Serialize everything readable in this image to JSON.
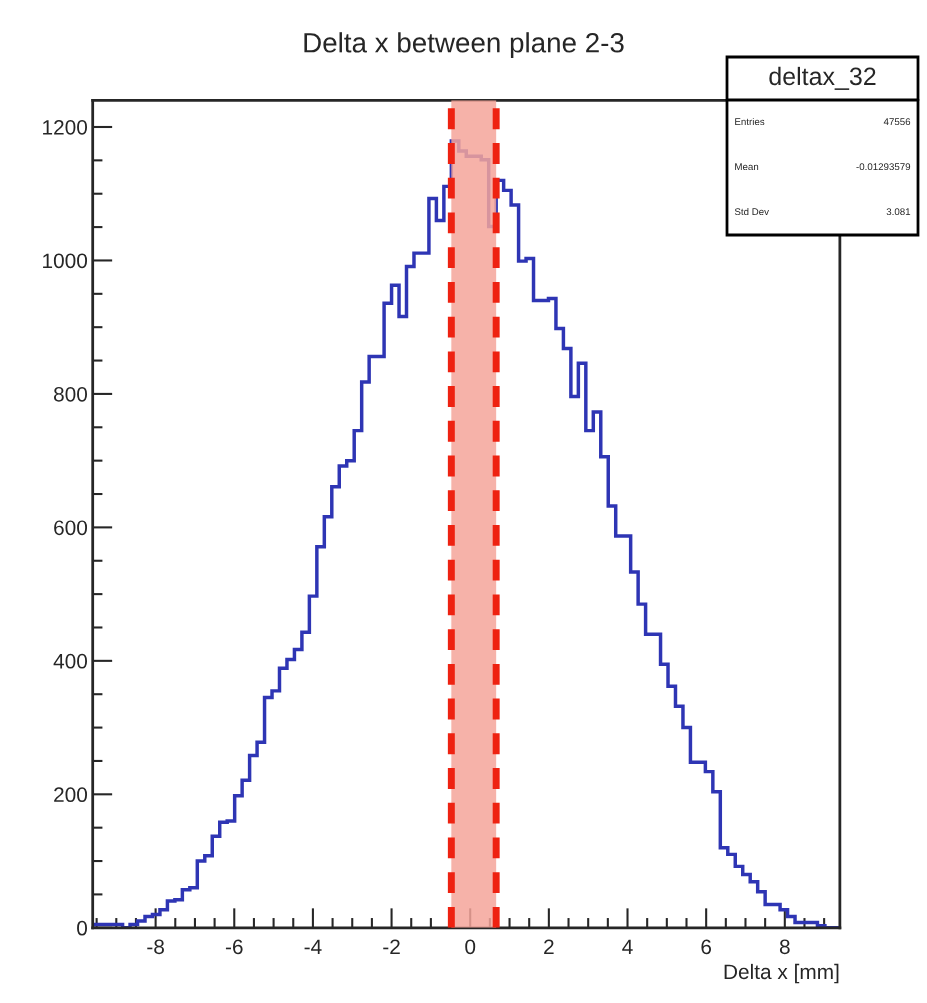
{
  "chart_data": {
    "type": "histogram",
    "title": "Delta x between plane 2-3",
    "xlabel": "Delta x [mm]",
    "xlim": [
      -9.6,
      9.4
    ],
    "xticks": [
      -8,
      -6,
      -4,
      -2,
      0,
      2,
      4,
      6,
      8
    ],
    "ylim": [
      0,
      1240
    ],
    "yticks": [
      0,
      200,
      400,
      600,
      800,
      1000,
      1200
    ],
    "grid": false,
    "legend": false,
    "annotations": [
      "deltax_32",
      "Entries",
      "47556",
      "Mean",
      "-0.01293579",
      "Std Dev",
      "3.081"
    ],
    "ref_lines": [
      {
        "axis": "x",
        "value": -0.48,
        "color": "#ee2211",
        "line_style": "dashed"
      },
      {
        "axis": "x",
        "value": 0.66,
        "color": "#ee2211",
        "line_style": "dashed"
      }
    ],
    "bands": [
      {
        "axis": "x",
        "from": -0.48,
        "to": 0.66,
        "color": "#f4a59a"
      }
    ],
    "color": "#2e35b4",
    "bins": [
      -9.6,
      -9.41,
      -9.22,
      -9.03,
      -8.84,
      -8.65,
      -8.46,
      -8.27,
      -8.08,
      -7.89,
      -7.7,
      -7.51,
      -7.32,
      -7.13,
      -6.94,
      -6.75,
      -6.56,
      -6.37,
      -6.18,
      -5.99,
      -5.8,
      -5.61,
      -5.42,
      -5.23,
      -5.04,
      -4.85,
      -4.66,
      -4.47,
      -4.28,
      -4.09,
      -3.9,
      -3.71,
      -3.52,
      -3.33,
      -3.14,
      -2.95,
      -2.76,
      -2.57,
      -2.38,
      -2.19,
      -2.0,
      -1.81,
      -1.62,
      -1.43,
      -1.24,
      -1.05,
      -0.86,
      -0.67,
      -0.48,
      -0.29,
      -0.1,
      0.09,
      0.28,
      0.47,
      0.66,
      0.85,
      1.04,
      1.23,
      1.42,
      1.61,
      1.8,
      1.99,
      2.18,
      2.37,
      2.56,
      2.75,
      2.94,
      3.13,
      3.32,
      3.51,
      3.7,
      3.89,
      4.08,
      4.27,
      4.46,
      4.65,
      4.84,
      5.03,
      5.22,
      5.41,
      5.6,
      5.79,
      5.98,
      6.17,
      6.36,
      6.55,
      6.74,
      6.93,
      7.12,
      7.31,
      7.5,
      7.69,
      7.88,
      8.07,
      8.26,
      8.45,
      8.64,
      8.83,
      9.02,
      9.21,
      9.4
    ],
    "values": [
      5,
      5,
      5,
      5,
      0,
      5,
      10,
      17,
      20,
      27,
      40,
      42,
      57,
      60,
      100,
      108,
      137,
      158,
      160,
      198,
      221,
      258,
      278,
      345,
      355,
      389,
      402,
      417,
      443,
      497,
      571,
      616,
      661,
      692,
      700,
      745,
      818,
      856,
      856,
      936,
      963,
      916,
      991,
      1011,
      1011,
      1093,
      1060,
      1111,
      1179,
      1164,
      1156,
      1156,
      1151,
      1051,
      1120,
      1105,
      1083,
      999,
      1003,
      940,
      940,
      943,
      898,
      868,
      796,
      846,
      745,
      773,
      706,
      632,
      587,
      587,
      533,
      485,
      440,
      440,
      395,
      362,
      332,
      300,
      248,
      248,
      234,
      204,
      120,
      110,
      92,
      80,
      69,
      54,
      35,
      35,
      27,
      17,
      8,
      8,
      8,
      3,
      0,
      0
    ]
  }
}
